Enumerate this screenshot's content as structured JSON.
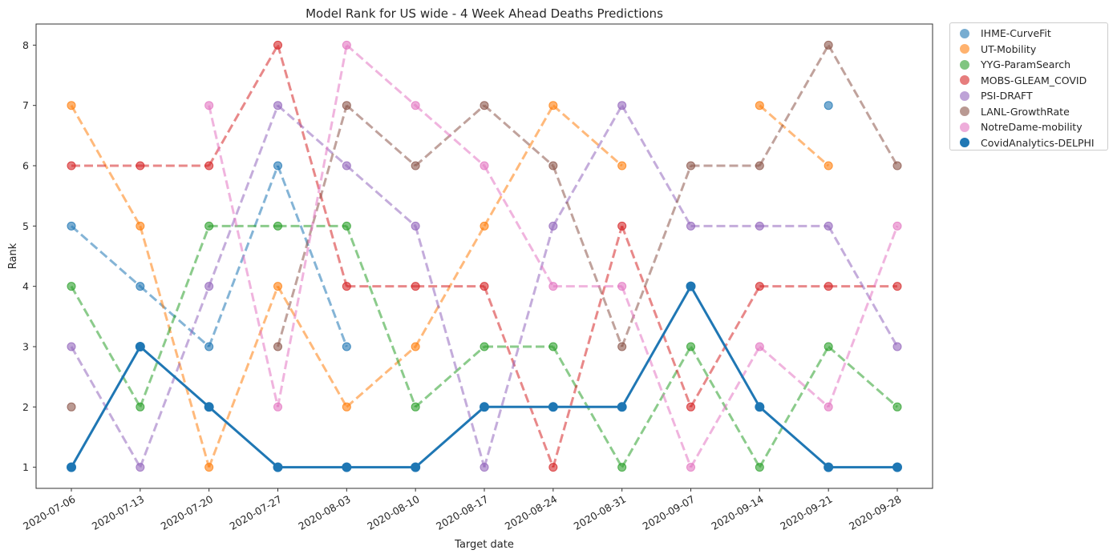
{
  "chart_data": {
    "type": "line",
    "title": "Model Rank for US wide - 4 Week Ahead Deaths Predictions",
    "xlabel": "Target date",
    "ylabel": "Rank",
    "ylim": [
      0.65,
      8.35
    ],
    "yticks": [
      1,
      2,
      3,
      4,
      5,
      6,
      7,
      8
    ],
    "x": [
      "2020-07-06",
      "2020-07-13",
      "2020-07-20",
      "2020-07-27",
      "2020-08-03",
      "2020-08-10",
      "2020-08-17",
      "2020-08-24",
      "2020-08-31",
      "2020-09-07",
      "2020-09-14",
      "2020-09-21",
      "2020-09-28"
    ],
    "legend_position": "outside top-right",
    "grid": false,
    "series": [
      {
        "name": "IHME-CurveFit",
        "color": "#1f77b4",
        "values": [
          5,
          4,
          3,
          6,
          3,
          null,
          null,
          null,
          null,
          null,
          null,
          7,
          null
        ]
      },
      {
        "name": "UT-Mobility",
        "color": "#ff7f0e",
        "values": [
          7,
          5,
          1,
          4,
          2,
          3,
          5,
          7,
          6,
          null,
          7,
          6,
          null
        ]
      },
      {
        "name": "YYG-ParamSearch",
        "color": "#2ca02c",
        "values": [
          4,
          2,
          5,
          5,
          5,
          2,
          3,
          3,
          1,
          3,
          1,
          3,
          2
        ]
      },
      {
        "name": "MOBS-GLEAM_COVID",
        "color": "#d62728",
        "values": [
          6,
          6,
          6,
          8,
          4,
          4,
          4,
          1,
          5,
          2,
          4,
          4,
          4
        ]
      },
      {
        "name": "PSI-DRAFT",
        "color": "#9467bd",
        "values": [
          3,
          1,
          4,
          7,
          6,
          5,
          1,
          5,
          7,
          5,
          5,
          5,
          3
        ]
      },
      {
        "name": "LANL-GrowthRate",
        "color": "#8c564b",
        "values": [
          2,
          null,
          null,
          3,
          7,
          6,
          7,
          6,
          3,
          6,
          6,
          8,
          6
        ]
      },
      {
        "name": "NotreDame-mobility",
        "color": "#e377c2",
        "values": [
          null,
          null,
          7,
          2,
          8,
          7,
          6,
          4,
          4,
          1,
          3,
          2,
          5
        ]
      },
      {
        "name": "CovidAnalytics-DELPHI",
        "color": "#1f77b4",
        "values": [
          1,
          3,
          2,
          1,
          1,
          1,
          2,
          2,
          2,
          4,
          2,
          1,
          1
        ],
        "highlight": true
      }
    ]
  }
}
